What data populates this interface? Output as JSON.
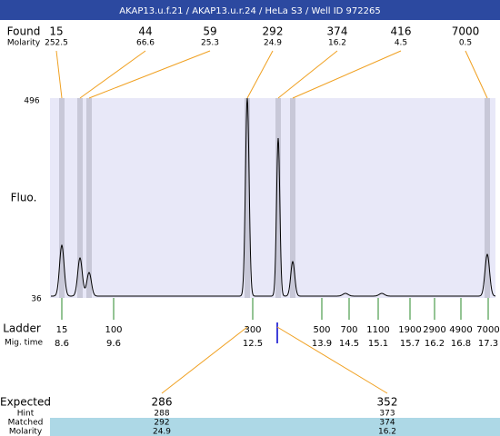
{
  "header": {
    "title": "AKAP13.u.f.21 / AKAP13.u.r.24 / HeLa S3 / Well ID 972265"
  },
  "found": {
    "label": "Found",
    "molarity_label": "Molarity",
    "peaks": [
      {
        "size": 15,
        "molarity": 252.5
      },
      {
        "size": 44,
        "molarity": 66.6
      },
      {
        "size": 59,
        "molarity": 25.3
      },
      {
        "size": 292,
        "molarity": 24.9
      },
      {
        "size": 374,
        "molarity": 16.2
      },
      {
        "size": 416,
        "molarity": 4.5
      },
      {
        "size": 7000,
        "molarity": 0.5
      }
    ]
  },
  "plot": {
    "y_label": "Fluo.",
    "y_max": 496,
    "y_min": 36
  },
  "ladder": {
    "label": "Ladder",
    "time_label": "Mig. time",
    "sizes": [
      15,
      100,
      300,
      500,
      700,
      1100,
      1900,
      2900,
      4900,
      7000
    ],
    "times": [
      8.6,
      9.6,
      12.5,
      13.9,
      14.5,
      15.1,
      15.7,
      16.2,
      16.8,
      17.3
    ]
  },
  "expected": {
    "label": "Expected",
    "hint_label": "Hint",
    "matched_label": "Matched",
    "molarity_label": "Molarity",
    "items": [
      {
        "expected": 286,
        "hint": 288,
        "matched": 292,
        "molarity": 24.9
      },
      {
        "expected": 352,
        "hint": 373,
        "matched": 374,
        "molarity": 16.2
      }
    ]
  }
}
